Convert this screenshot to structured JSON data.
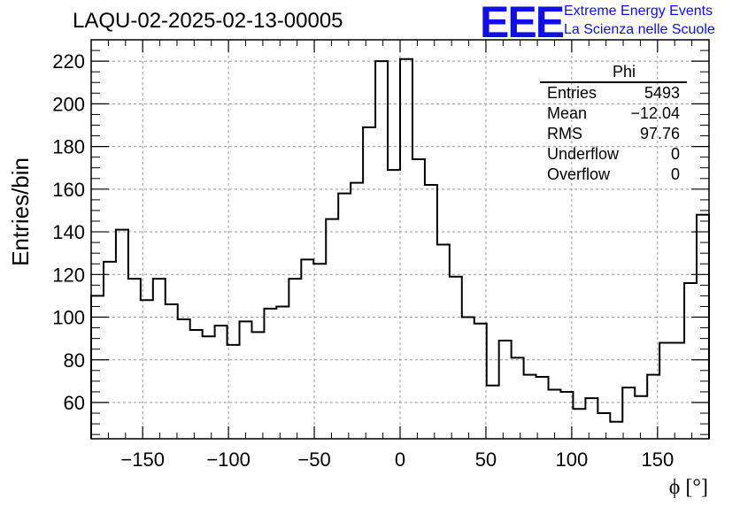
{
  "title": "LAQU-02-2025-02-13-00005",
  "logo": {
    "text": "EEE",
    "line1": "Extreme Energy Events",
    "line2": "La Scienza nelle Scuole",
    "color": "#1010e0"
  },
  "stats": {
    "name": "Phi",
    "rows": [
      {
        "label": "Entries",
        "value": "5493"
      },
      {
        "label": "Mean",
        "value": "−12.04"
      },
      {
        "label": "RMS",
        "value": "97.76"
      },
      {
        "label": "Underflow",
        "value": "0"
      },
      {
        "label": "Overflow",
        "value": "0"
      }
    ]
  },
  "chart_data": {
    "type": "histogram",
    "xlabel": "ϕ [°]",
    "ylabel": "Entries/bin",
    "xlim": [
      -180,
      180
    ],
    "ylim": [
      43,
      230
    ],
    "xticks": [
      -150,
      -100,
      -50,
      0,
      50,
      100,
      150
    ],
    "xtick_labels": [
      "−150",
      "−100",
      "−50",
      "0",
      "50",
      "100",
      "150"
    ],
    "yticks": [
      60,
      80,
      100,
      120,
      140,
      160,
      180,
      200,
      220
    ],
    "grid": true,
    "bin_edges_start": -180,
    "bin_width": 7.2,
    "values": [
      110,
      126,
      141,
      118,
      108,
      118,
      106,
      99,
      94,
      91,
      96,
      87,
      98,
      93,
      104,
      105,
      118,
      127,
      125,
      146,
      158,
      163,
      189,
      220,
      169,
      221,
      174,
      162,
      134,
      119,
      100,
      97,
      68,
      89,
      81,
      73,
      72,
      66,
      65,
      57,
      62,
      55,
      51,
      67,
      63,
      73,
      88,
      88,
      116,
      148
    ]
  }
}
